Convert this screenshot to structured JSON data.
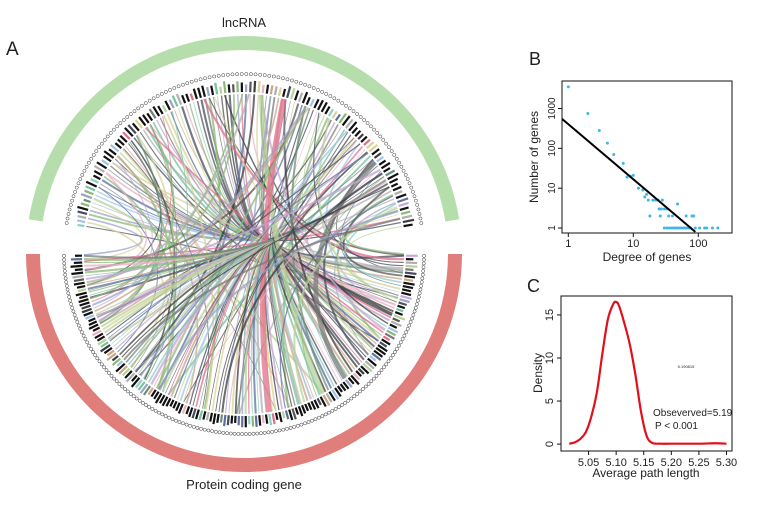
{
  "panels": {
    "a": "A",
    "b": "B",
    "c": "C"
  },
  "chart_data": [
    {
      "type": "chord",
      "panel": "A",
      "groups": [
        {
          "name": "lncRNA",
          "color": "#b6ddac"
        },
        {
          "name": "Protein coding gene",
          "color": "#e07e7c"
        }
      ],
      "hub_note": "many links converge on one highly connected gene"
    },
    {
      "type": "scatter",
      "panel": "B",
      "xlabel": "Degree of genes",
      "ylabel": "Number of genes",
      "xscale": "log",
      "yscale": "log",
      "xlim": [
        0.8,
        330
      ],
      "ylim": [
        0.75,
        4900
      ],
      "xticks": [
        {
          "v": 1,
          "label": "1"
        },
        {
          "v": 10,
          "label": "10"
        },
        {
          "v": 100,
          "label": "100"
        }
      ],
      "yticks": [
        {
          "v": 1,
          "label": "1"
        },
        {
          "v": 10,
          "label": "10"
        },
        {
          "v": 100,
          "label": "100"
        },
        {
          "v": 1000,
          "label": "1000"
        }
      ],
      "point_color": "#3fb6e8",
      "points": [
        [
          1,
          3500
        ],
        [
          2,
          750
        ],
        [
          3,
          280
        ],
        [
          4,
          135
        ],
        [
          5,
          70
        ],
        [
          7,
          42
        ],
        [
          8,
          19
        ],
        [
          9,
          20
        ],
        [
          10,
          21
        ],
        [
          12,
          10
        ],
        [
          14,
          9
        ],
        [
          15,
          6
        ],
        [
          16,
          7
        ],
        [
          17,
          5
        ],
        [
          18,
          2
        ],
        [
          20,
          5
        ],
        [
          22,
          5
        ],
        [
          24,
          5
        ],
        [
          25,
          3
        ],
        [
          26,
          2
        ],
        [
          27,
          3
        ],
        [
          28,
          5
        ],
        [
          30,
          3
        ],
        [
          33,
          3
        ],
        [
          35,
          2
        ],
        [
          40,
          2
        ],
        [
          48,
          4
        ],
        [
          65,
          2
        ],
        [
          80,
          2
        ],
        [
          85,
          2
        ],
        [
          30,
          1
        ],
        [
          33,
          1
        ],
        [
          36,
          1
        ],
        [
          39,
          1
        ],
        [
          42,
          1
        ],
        [
          45,
          1
        ],
        [
          48,
          1
        ],
        [
          52,
          1
        ],
        [
          56,
          1
        ],
        [
          60,
          1
        ],
        [
          65,
          1
        ],
        [
          70,
          1
        ],
        [
          76,
          1
        ],
        [
          90,
          1
        ],
        [
          105,
          1
        ],
        [
          125,
          1
        ],
        [
          135,
          1
        ],
        [
          165,
          1
        ],
        [
          200,
          1
        ]
      ],
      "fit_line": {
        "color": "#000000",
        "from": [
          0.85,
          550
        ],
        "to": [
          90,
          0.8
        ]
      }
    },
    {
      "type": "line",
      "panel": "C",
      "xlabel": "Average path length",
      "ylabel": "Density",
      "xlim": [
        5.0,
        5.31
      ],
      "ylim": [
        -0.8,
        17.2
      ],
      "xticks": [
        "5.05",
        "5.10",
        "5.15",
        "5.20",
        "5.25",
        "5.30"
      ],
      "yticks": [
        "0",
        "5",
        "10",
        "15"
      ],
      "line_color": "#e0101c",
      "x": [
        5.015,
        5.025,
        5.035,
        5.045,
        5.055,
        5.065,
        5.075,
        5.085,
        5.095,
        5.1,
        5.105,
        5.115,
        5.125,
        5.135,
        5.145,
        5.155,
        5.165,
        5.18,
        5.2,
        5.25,
        5.28,
        5.3
      ],
      "y": [
        0.05,
        0.2,
        0.6,
        1.4,
        3.2,
        6.0,
        10.5,
        14.5,
        16.3,
        16.5,
        16.1,
        14.0,
        11.5,
        8.0,
        3.8,
        1.0,
        0.15,
        0.05,
        0.05,
        0.05,
        0.1,
        0.05
      ],
      "annotations": {
        "small": "5.190815",
        "observed": "Obseverved=5.19",
        "pvalue": "P < 0.001"
      }
    }
  ]
}
